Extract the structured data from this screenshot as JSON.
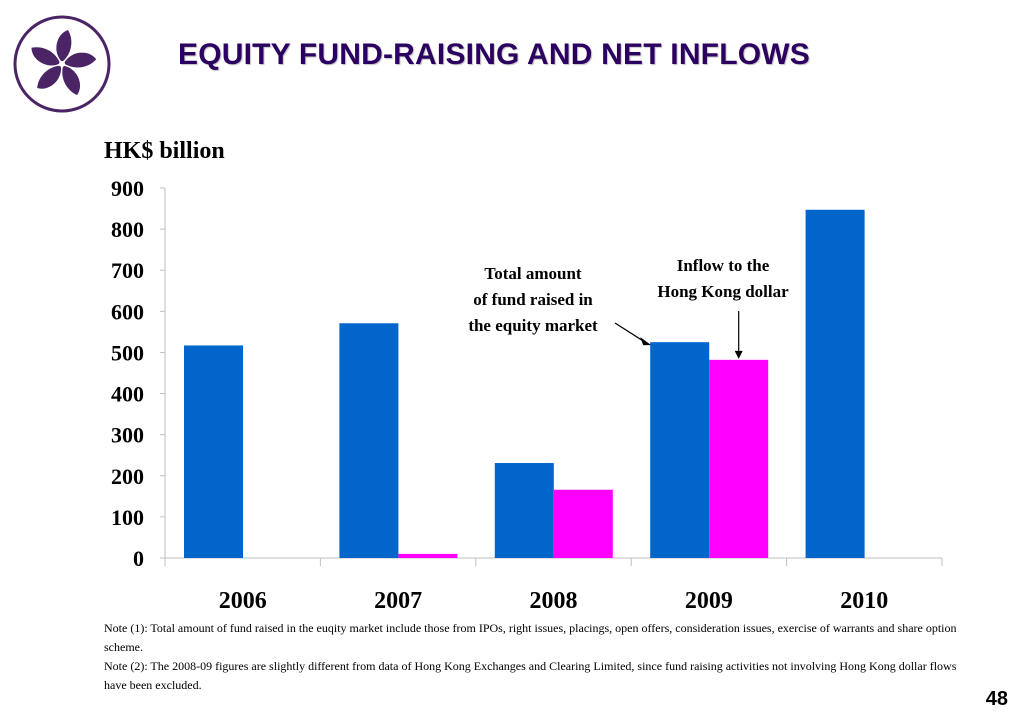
{
  "page": {
    "title": "EQUITY FUND-RAISING AND NET INFLOWS",
    "page_number": "48"
  },
  "logo": {
    "icon": "bauhinia-flower-icon",
    "color": "#4b2466"
  },
  "notes": [
    "Note (1): Total amount of fund raised in the euqity market include those from IPOs, right issues, placings, open offers, consideration issues, exercise of warrants and share option scheme.",
    "Note (2): The 2008-09 figures are slightly different from data of Hong Kong Exchanges and Clearing Limited, since fund raising activities not involving Hong Kong dollar flows have been excluded."
  ],
  "colors": {
    "fund_raised": "#0066cc",
    "inflow": "#ff00ff"
  },
  "chart_data": {
    "type": "bar",
    "ylabel": "HK$ billion",
    "ylim": [
      0,
      900
    ],
    "yticks": [
      0,
      100,
      200,
      300,
      400,
      500,
      600,
      700,
      800,
      900
    ],
    "categories": [
      "2006",
      "2007",
      "2008",
      "2009",
      "2010"
    ],
    "series": [
      {
        "key": "fund_raised",
        "values": [
          517,
          571,
          231,
          525,
          847
        ]
      },
      {
        "key": "inflow",
        "values": [
          null,
          10,
          166,
          482,
          null
        ]
      }
    ],
    "annotations": [
      {
        "series": "fund_raised",
        "text_lines": [
          "Total amount",
          "of fund raised in",
          "the equity market"
        ]
      },
      {
        "series": "inflow",
        "text_lines": [
          "Inflow to the",
          "Hong Kong dollar"
        ]
      }
    ]
  }
}
